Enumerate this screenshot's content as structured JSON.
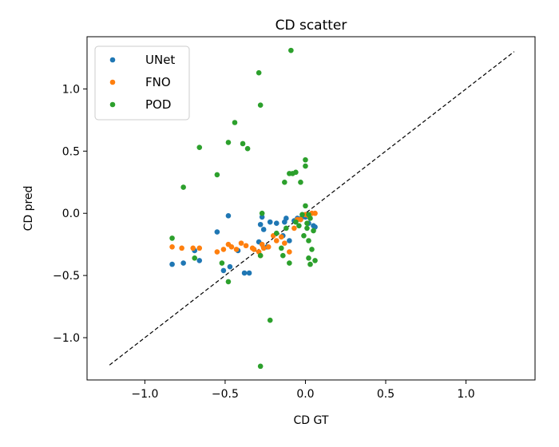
{
  "chart_data": {
    "type": "scatter",
    "title": "CD scatter",
    "xlabel": "CD GT",
    "ylabel": "CD pred",
    "xlim": [
      -1.36,
      1.43
    ],
    "ylim": [
      -1.34,
      1.42
    ],
    "xticks": [
      -1.0,
      -0.5,
      0.0,
      0.5,
      1.0
    ],
    "yticks": [
      -1.0,
      -0.5,
      0.0,
      0.5,
      1.0
    ],
    "xtick_labels": [
      "−1.0",
      "−0.5",
      "0.0",
      "0.5",
      "1.0"
    ],
    "ytick_labels": [
      "−1.0",
      "−0.5",
      "0.0",
      "0.5",
      "1.0"
    ],
    "grid": false,
    "legend_position": "top-left",
    "reference_line": {
      "style": "dashed",
      "color": "#000000",
      "x": [
        -1.22,
        1.3
      ],
      "y": [
        -1.22,
        1.3
      ]
    },
    "series": [
      {
        "name": "UNet",
        "color": "#1f77b4",
        "points": [
          [
            -0.83,
            -0.41
          ],
          [
            -0.76,
            -0.4
          ],
          [
            -0.69,
            -0.3
          ],
          [
            -0.66,
            -0.38
          ],
          [
            -0.55,
            -0.15
          ],
          [
            -0.51,
            -0.46
          ],
          [
            -0.48,
            -0.02
          ],
          [
            -0.47,
            -0.43
          ],
          [
            -0.42,
            -0.3
          ],
          [
            -0.38,
            -0.48
          ],
          [
            -0.35,
            -0.48
          ],
          [
            -0.29,
            -0.23
          ],
          [
            -0.28,
            -0.09
          ],
          [
            -0.27,
            -0.03
          ],
          [
            -0.26,
            -0.13
          ],
          [
            -0.24,
            -0.27
          ],
          [
            -0.22,
            -0.07
          ],
          [
            -0.18,
            -0.08
          ],
          [
            -0.14,
            -0.18
          ],
          [
            -0.13,
            -0.07
          ],
          [
            -0.1,
            -0.22
          ],
          [
            -0.07,
            -0.06
          ],
          [
            -0.05,
            -0.04
          ],
          [
            -0.03,
            -0.05
          ],
          [
            -0.02,
            -0.03
          ],
          [
            0.0,
            -0.03
          ],
          [
            0.02,
            -0.08
          ],
          [
            0.05,
            -0.1
          ],
          [
            -0.12,
            -0.04
          ],
          [
            0.06,
            -0.11
          ]
        ]
      },
      {
        "name": "FNO",
        "color": "#ff7f0e",
        "points": [
          [
            -0.83,
            -0.27
          ],
          [
            -0.77,
            -0.28
          ],
          [
            -0.7,
            -0.28
          ],
          [
            -0.66,
            -0.28
          ],
          [
            -0.55,
            -0.31
          ],
          [
            -0.51,
            -0.29
          ],
          [
            -0.48,
            -0.25
          ],
          [
            -0.46,
            -0.27
          ],
          [
            -0.43,
            -0.29
          ],
          [
            -0.4,
            -0.24
          ],
          [
            -0.37,
            -0.26
          ],
          [
            -0.33,
            -0.28
          ],
          [
            -0.29,
            -0.31
          ],
          [
            -0.28,
            -0.34
          ],
          [
            -0.26,
            -0.28
          ],
          [
            -0.23,
            -0.27
          ],
          [
            -0.2,
            -0.18
          ],
          [
            -0.18,
            -0.22
          ],
          [
            -0.15,
            -0.19
          ],
          [
            -0.13,
            -0.24
          ],
          [
            -0.1,
            -0.31
          ],
          [
            -0.07,
            -0.12
          ],
          [
            -0.05,
            -0.05
          ],
          [
            -0.03,
            -0.05
          ],
          [
            0.0,
            -0.01
          ],
          [
            0.02,
            -0.02
          ],
          [
            0.04,
            0.0
          ],
          [
            0.06,
            0.0
          ],
          [
            -0.27,
            -0.25
          ],
          [
            -0.32,
            -0.29
          ]
        ]
      },
      {
        "name": "POD",
        "color": "#2ca02c",
        "points": [
          [
            -0.83,
            -0.2
          ],
          [
            -0.76,
            0.21
          ],
          [
            -0.69,
            -0.36
          ],
          [
            -0.66,
            0.53
          ],
          [
            -0.55,
            0.31
          ],
          [
            -0.52,
            -0.4
          ],
          [
            -0.48,
            0.57
          ],
          [
            -0.48,
            -0.55
          ],
          [
            -0.44,
            0.73
          ],
          [
            -0.39,
            0.56
          ],
          [
            -0.36,
            0.52
          ],
          [
            -0.29,
            1.13
          ],
          [
            -0.28,
            0.87
          ],
          [
            -0.28,
            -1.23
          ],
          [
            -0.27,
            0.0
          ],
          [
            -0.28,
            -0.34
          ],
          [
            -0.22,
            -0.86
          ],
          [
            -0.15,
            -0.28
          ],
          [
            -0.14,
            -0.34
          ],
          [
            -0.13,
            0.25
          ],
          [
            -0.1,
            0.32
          ],
          [
            -0.1,
            -0.4
          ],
          [
            -0.08,
            0.32
          ],
          [
            -0.06,
            0.33
          ],
          [
            -0.09,
            1.31
          ],
          [
            -0.03,
            0.25
          ],
          [
            -0.02,
            -0.01
          ],
          [
            0.0,
            0.43
          ],
          [
            0.0,
            0.38
          ],
          [
            0.0,
            0.06
          ],
          [
            0.01,
            -0.08
          ],
          [
            0.01,
            -0.12
          ],
          [
            0.02,
            -0.22
          ],
          [
            0.02,
            -0.36
          ],
          [
            0.03,
            -0.41
          ],
          [
            0.04,
            -0.29
          ],
          [
            0.06,
            -0.38
          ],
          [
            0.05,
            -0.14
          ],
          [
            0.03,
            -0.04
          ],
          [
            0.02,
            -0.01
          ],
          [
            -0.01,
            -0.18
          ],
          [
            -0.04,
            -0.1
          ],
          [
            -0.06,
            -0.07
          ],
          [
            -0.12,
            -0.12
          ],
          [
            -0.18,
            -0.16
          ]
        ]
      }
    ]
  }
}
